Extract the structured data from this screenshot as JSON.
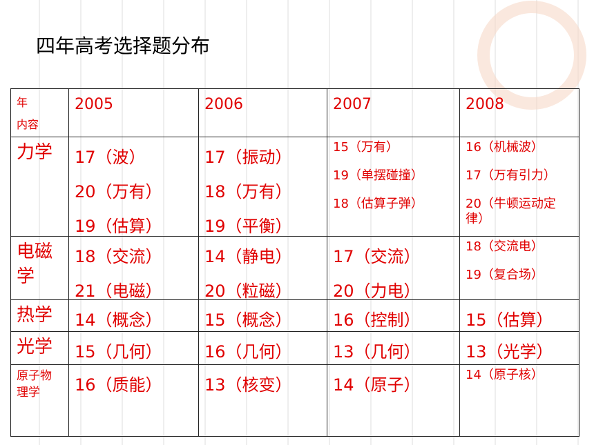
{
  "title": "四年高考选择题分布",
  "table": {
    "corner": [
      "年",
      "内容"
    ],
    "header": [
      "2005",
      "2006",
      "2007",
      "2008"
    ],
    "rows": [
      {
        "topic": "力学",
        "cells": [
          [
            "17（波）",
            "20（万有）",
            "19（估算）"
          ],
          [
            "17（振动）",
            "18（万有）",
            "19（平衡）"
          ],
          [
            "15（万有）",
            "19（单摆碰撞）",
            "18（估算子弹）"
          ],
          [
            "16（机械波）",
            "17（万有引力）",
            "20（牛顿运动定律）"
          ]
        ]
      },
      {
        "topic": "电磁学",
        "cells": [
          [
            "18（交流）",
            "21（电磁）"
          ],
          [
            "14（静电）",
            "20（粒磁）"
          ],
          [
            "17（交流）",
            "20（力电）"
          ],
          [
            "18（交流电）",
            "19（复合场）"
          ]
        ]
      },
      {
        "topic": "热学",
        "cells": [
          [
            "14（概念）"
          ],
          [
            "15（概念）"
          ],
          [
            "16（控制）"
          ],
          [
            "15（估算）"
          ]
        ]
      },
      {
        "topic": "光学",
        "cells": [
          [
            "15（几何）"
          ],
          [
            "16（几何）"
          ],
          [
            "13（几何）"
          ],
          [
            "13（光学）"
          ]
        ]
      },
      {
        "topic": "原子物理学",
        "cells": [
          [
            "16（质能）"
          ],
          [
            "13（核变）"
          ],
          [
            "14（原子）"
          ],
          [
            "14（原子核）"
          ]
        ]
      }
    ]
  }
}
